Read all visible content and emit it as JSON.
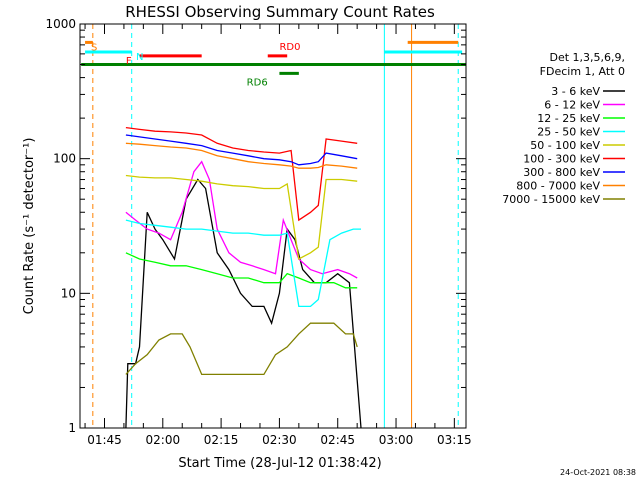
{
  "chart_data": {
    "type": "line",
    "title": "RHESSI Observing Summary Count Rates",
    "xlabel": "Start Time (28-Jul-12 01:38:42)",
    "ylabel": "Count Rate (s⁻¹ detector⁻¹)",
    "yscale": "log",
    "ylim": [
      1,
      1000
    ],
    "xlim_minutes": [
      98.7,
      198
    ],
    "y_ticks": [
      1,
      10,
      100,
      1000
    ],
    "y_tick_labels": [
      "1",
      "10",
      "100",
      "1000"
    ],
    "x_ticks_minutes": [
      105,
      120,
      135,
      150,
      165,
      180,
      195
    ],
    "x_tick_labels": [
      "01:45",
      "02:00",
      "02:15",
      "02:30",
      "02:45",
      "03:00",
      "03:15"
    ],
    "legend_header": [
      "Det 1,3,5,6,9,",
      "FDecim 1, Att 0"
    ],
    "legend_position": "right",
    "footer_date": "24-Oct-2021 08:38",
    "series": [
      {
        "name": "3 - 6 keV",
        "color": "#000000",
        "points": [
          [
            110.5,
            1
          ],
          [
            111,
            3
          ],
          [
            113,
            3
          ],
          [
            114,
            4
          ],
          [
            116,
            40
          ],
          [
            118,
            30
          ],
          [
            120,
            25
          ],
          [
            123,
            18
          ],
          [
            126,
            50
          ],
          [
            129,
            70
          ],
          [
            131,
            60
          ],
          [
            134,
            20
          ],
          [
            137,
            15
          ],
          [
            140,
            10
          ],
          [
            143,
            8
          ],
          [
            146,
            8
          ],
          [
            148,
            6
          ],
          [
            150,
            10
          ],
          [
            152,
            30
          ],
          [
            154,
            25
          ],
          [
            156,
            15
          ],
          [
            159,
            12
          ],
          [
            162,
            12
          ],
          [
            165,
            14
          ],
          [
            168,
            12
          ],
          [
            171,
            1
          ]
        ]
      },
      {
        "name": "6 - 12 keV",
        "color": "#ff00ff",
        "points": [
          [
            110.5,
            40
          ],
          [
            113,
            35
          ],
          [
            116,
            30
          ],
          [
            119,
            28
          ],
          [
            122,
            25
          ],
          [
            125,
            40
          ],
          [
            128,
            80
          ],
          [
            130,
            95
          ],
          [
            132,
            70
          ],
          [
            134,
            30
          ],
          [
            137,
            20
          ],
          [
            140,
            17
          ],
          [
            143,
            16
          ],
          [
            146,
            15
          ],
          [
            149,
            14
          ],
          [
            151,
            35
          ],
          [
            153,
            25
          ],
          [
            155,
            18
          ],
          [
            158,
            15
          ],
          [
            161,
            14
          ],
          [
            165,
            15
          ],
          [
            168,
            14
          ],
          [
            170,
            13
          ]
        ]
      },
      {
        "name": "12 - 25 keV",
        "color": "#00ff00",
        "points": [
          [
            110.5,
            20
          ],
          [
            114,
            18
          ],
          [
            118,
            17
          ],
          [
            122,
            16
          ],
          [
            126,
            16
          ],
          [
            130,
            15
          ],
          [
            134,
            14
          ],
          [
            138,
            13
          ],
          [
            142,
            13
          ],
          [
            146,
            12
          ],
          [
            150,
            12
          ],
          [
            152,
            14
          ],
          [
            155,
            13
          ],
          [
            158,
            12
          ],
          [
            161,
            12
          ],
          [
            164,
            12
          ],
          [
            167,
            11
          ],
          [
            170,
            11
          ]
        ]
      },
      {
        "name": "25 - 50 keV",
        "color": "#00ffff",
        "points": [
          [
            110.5,
            35
          ],
          [
            114,
            33
          ],
          [
            118,
            32
          ],
          [
            122,
            31
          ],
          [
            126,
            30
          ],
          [
            130,
            30
          ],
          [
            134,
            29
          ],
          [
            138,
            28
          ],
          [
            142,
            28
          ],
          [
            146,
            27
          ],
          [
            150,
            27
          ],
          [
            152,
            28
          ],
          [
            155,
            8
          ],
          [
            158,
            8
          ],
          [
            160,
            9
          ],
          [
            163,
            25
          ],
          [
            166,
            28
          ],
          [
            169,
            30
          ],
          [
            171,
            30
          ]
        ]
      },
      {
        "name": "50 - 100 keV",
        "color": "#cccc00",
        "points": [
          [
            110.5,
            75
          ],
          [
            114,
            73
          ],
          [
            118,
            72
          ],
          [
            122,
            72
          ],
          [
            126,
            70
          ],
          [
            130,
            68
          ],
          [
            134,
            65
          ],
          [
            138,
            63
          ],
          [
            142,
            62
          ],
          [
            146,
            60
          ],
          [
            150,
            60
          ],
          [
            152,
            65
          ],
          [
            155,
            18
          ],
          [
            158,
            20
          ],
          [
            160,
            22
          ],
          [
            162,
            70
          ],
          [
            166,
            70
          ],
          [
            170,
            68
          ]
        ]
      },
      {
        "name": "100 - 300 keV",
        "color": "#ff0000",
        "points": [
          [
            110.5,
            170
          ],
          [
            114,
            165
          ],
          [
            118,
            160
          ],
          [
            122,
            158
          ],
          [
            126,
            155
          ],
          [
            130,
            150
          ],
          [
            134,
            130
          ],
          [
            138,
            120
          ],
          [
            142,
            115
          ],
          [
            146,
            112
          ],
          [
            150,
            110
          ],
          [
            153,
            115
          ],
          [
            155,
            35
          ],
          [
            158,
            40
          ],
          [
            160,
            45
          ],
          [
            162,
            140
          ],
          [
            166,
            135
          ],
          [
            170,
            130
          ]
        ]
      },
      {
        "name": "300 - 800 keV",
        "color": "#0000ff",
        "points": [
          [
            110.5,
            150
          ],
          [
            114,
            145
          ],
          [
            118,
            140
          ],
          [
            122,
            135
          ],
          [
            126,
            130
          ],
          [
            130,
            125
          ],
          [
            134,
            115
          ],
          [
            138,
            110
          ],
          [
            142,
            105
          ],
          [
            146,
            100
          ],
          [
            150,
            98
          ],
          [
            153,
            95
          ],
          [
            155,
            90
          ],
          [
            158,
            92
          ],
          [
            160,
            95
          ],
          [
            162,
            110
          ],
          [
            166,
            105
          ],
          [
            170,
            100
          ]
        ]
      },
      {
        "name": "800 - 7000 keV",
        "color": "#ff8000",
        "points": [
          [
            110.5,
            130
          ],
          [
            114,
            128
          ],
          [
            118,
            125
          ],
          [
            122,
            122
          ],
          [
            126,
            120
          ],
          [
            130,
            115
          ],
          [
            134,
            105
          ],
          [
            138,
            100
          ],
          [
            142,
            95
          ],
          [
            146,
            92
          ],
          [
            150,
            90
          ],
          [
            153,
            88
          ],
          [
            155,
            85
          ],
          [
            158,
            85
          ],
          [
            160,
            86
          ],
          [
            162,
            90
          ],
          [
            166,
            88
          ],
          [
            170,
            85
          ]
        ]
      },
      {
        "name": "7000 - 15000 keV",
        "color": "#808000",
        "points": [
          [
            110.5,
            2.5
          ],
          [
            113,
            3
          ],
          [
            116,
            3.5
          ],
          [
            119,
            4.5
          ],
          [
            122,
            5
          ],
          [
            125,
            5
          ],
          [
            127,
            4
          ],
          [
            130,
            2.5
          ],
          [
            134,
            2.5
          ],
          [
            138,
            2.5
          ],
          [
            142,
            2.5
          ],
          [
            146,
            2.5
          ],
          [
            149,
            3.5
          ],
          [
            152,
            4
          ],
          [
            155,
            5
          ],
          [
            158,
            6
          ],
          [
            161,
            6
          ],
          [
            164,
            6
          ],
          [
            167,
            5
          ],
          [
            169,
            5
          ],
          [
            170,
            4
          ]
        ]
      }
    ],
    "markers": [
      {
        "label": "S",
        "color": "#ff8000",
        "y": 730
      },
      {
        "label": "N",
        "color": "#00ffff",
        "y": 620
      },
      {
        "label": "F",
        "color": "#ff0000",
        "y": 580
      },
      {
        "label": "RD0",
        "color": "#ff0000",
        "y": 580
      },
      {
        "label": "RD6",
        "color": "#008000",
        "y": 430
      }
    ],
    "marker_bars": [
      {
        "color": "#ff8000",
        "y": 730,
        "x0": 100,
        "x1": 102
      },
      {
        "color": "#ff8000",
        "y": 730,
        "x0": 183,
        "x1": 196
      },
      {
        "color": "#00ffff",
        "y": 620,
        "x0": 100,
        "x1": 112
      },
      {
        "color": "#00ffff",
        "y": 620,
        "x0": 177,
        "x1": 197
      },
      {
        "color": "#ff0000",
        "y": 580,
        "x0": 114,
        "x1": 130
      },
      {
        "color": "#ff0000",
        "y": 580,
        "x0": 147,
        "x1": 152
      },
      {
        "color": "#008000",
        "y": 500,
        "x0": 99,
        "x1": 198
      },
      {
        "color": "#008000",
        "y": 430,
        "x0": 150,
        "x1": 155
      }
    ],
    "vlines": [
      {
        "x": 102,
        "color": "#ff8000",
        "dashed": true
      },
      {
        "x": 184,
        "color": "#ff8000",
        "dashed": false
      },
      {
        "x": 112,
        "color": "#00ffff",
        "dashed": true
      },
      {
        "x": 177,
        "color": "#00ffff",
        "dashed": false
      },
      {
        "x": 196,
        "color": "#00ffff",
        "dashed": true
      }
    ]
  }
}
